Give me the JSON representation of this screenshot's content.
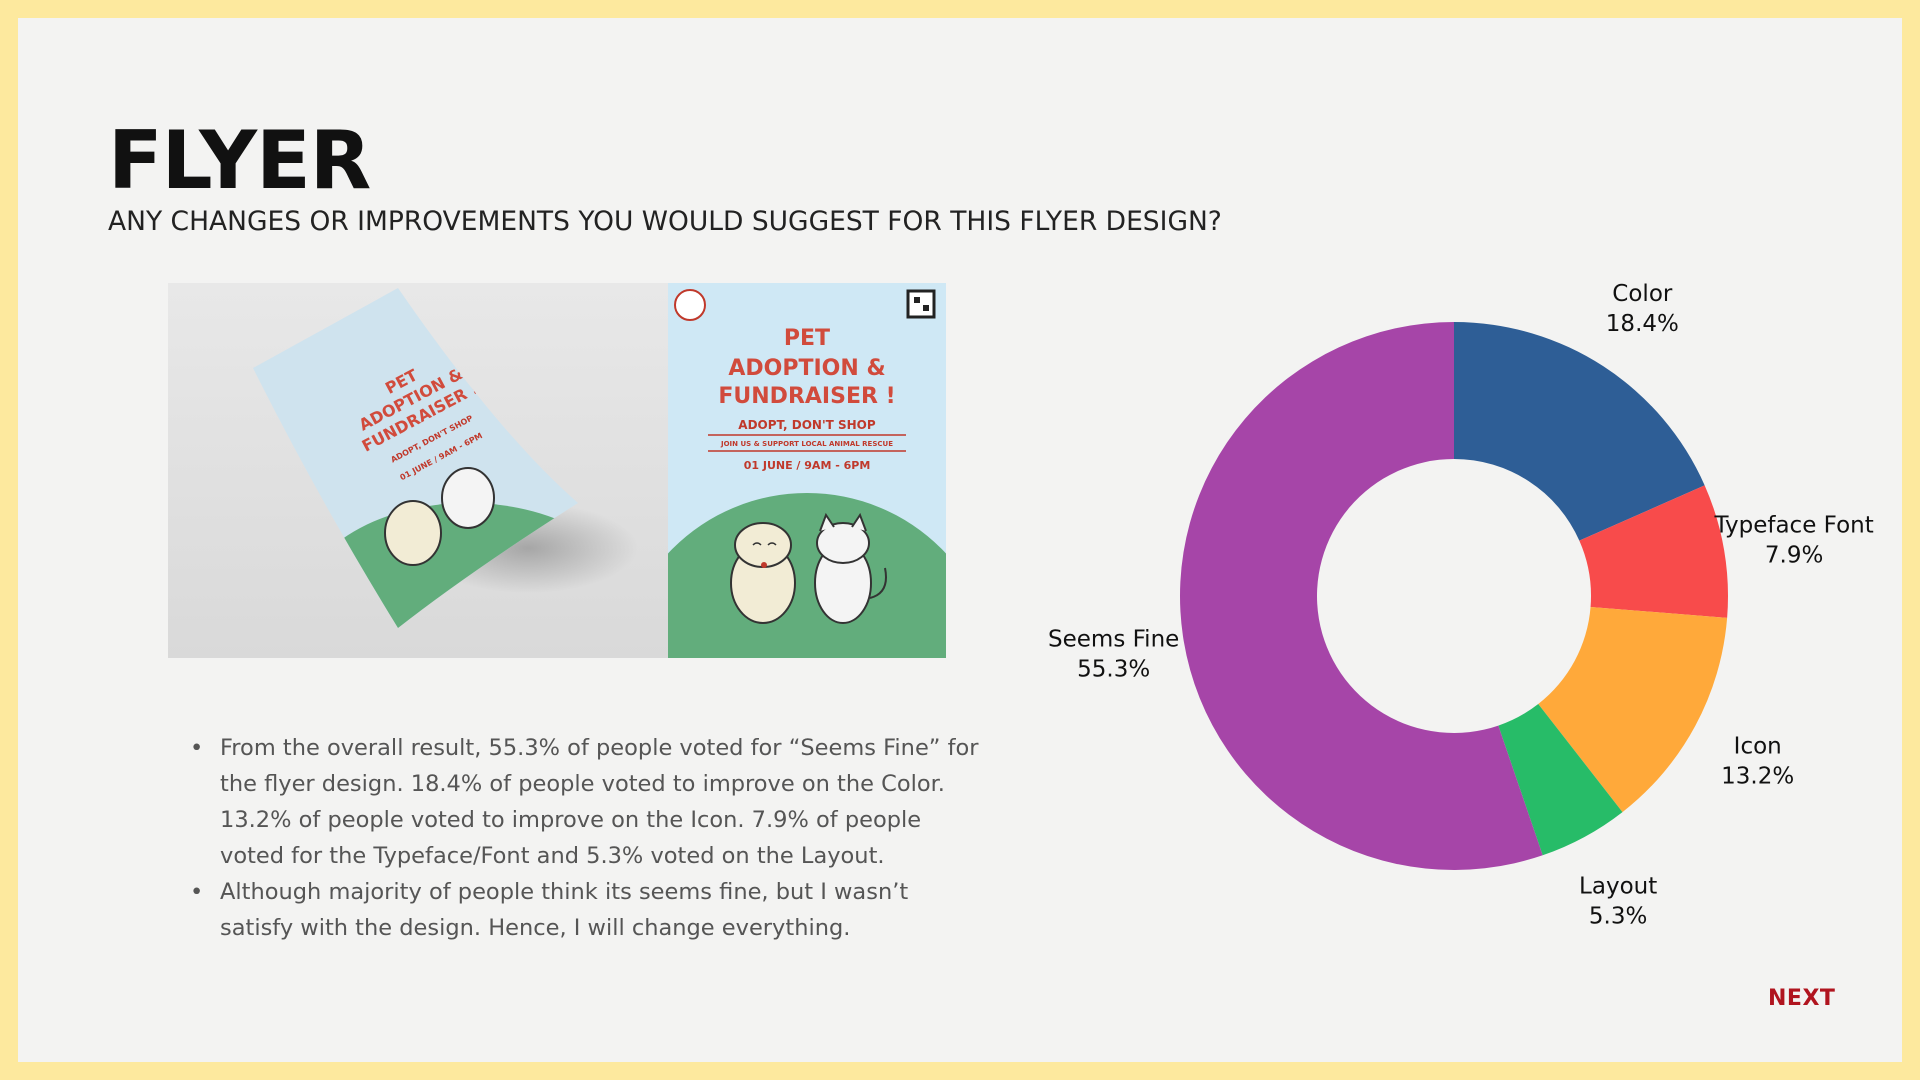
{
  "slide": {
    "title": "FLYER",
    "subtitle": "ANY CHANGES OR IMPROVEMENTS YOU WOULD SUGGEST FOR THIS FLYER DESIGN?",
    "next_label": "NEXT",
    "accent_color": "#b0141f",
    "frame_color": "#fde99e",
    "background_color": "#f3f3f2"
  },
  "flyer": {
    "headline_lines": [
      "PET",
      "ADOPTION &",
      "FUNDRAISER !"
    ],
    "tagline": "ADOPT, DON'T SHOP",
    "subline": "JOIN US & SUPPORT LOCAL ANIMAL RESCUE",
    "date": "01 JUNE / 9AM - 6PM",
    "colors": {
      "sky": "#cfe8f5",
      "hill": "#62ad7c",
      "headline": "#d14b3c"
    }
  },
  "notes": [
    "From the overall result, 55.3% of people voted for “Seems Fine” for the flyer design. 18.4% of people voted to improve on the Color. 13.2% of people voted to improve on the Icon. 7.9% of people voted for the Typeface/Font and 5.3% voted on the Layout.",
    "Although majority of people think its seems fine, but I wasn’t satisfy with the design. Hence, I will change everything."
  ],
  "chart_data": {
    "type": "pie",
    "style": "donut",
    "title": "",
    "start": "top, clockwise",
    "slices": [
      {
        "label": "Color",
        "value": 18.4,
        "display": "18.4%",
        "color": "#2e5e96"
      },
      {
        "label": "Typeface Font",
        "value": 7.9,
        "display": "7.9%",
        "color": "#f84b4b"
      },
      {
        "label": "Icon",
        "value": 13.2,
        "display": "13.2%",
        "color": "#ffa93a"
      },
      {
        "label": "Layout",
        "value": 5.3,
        "display": "5.3%",
        "color": "#27bc68"
      },
      {
        "label": "Seems Fine",
        "value": 55.3,
        "display": "55.3%",
        "color": "#a645a8"
      }
    ]
  }
}
